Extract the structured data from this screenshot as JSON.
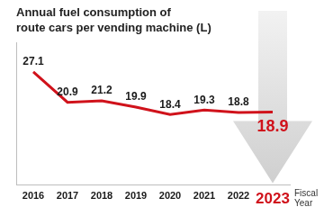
{
  "chart_data": {
    "type": "line",
    "title": "Annual fuel consumption of\nroute cars per vending machine (L)",
    "x_label": "Fiscal Year",
    "categories": [
      "2016",
      "2017",
      "2018",
      "2019",
      "2020",
      "2021",
      "2022",
      "2023"
    ],
    "values": [
      27.1,
      20.9,
      21.2,
      19.9,
      18.4,
      19.3,
      18.8,
      18.9
    ],
    "color": "#d0121b",
    "ylim": [
      4,
      33
    ],
    "grid": false,
    "data_labels": true,
    "tick_labels": "x",
    "marker": "none"
  }
}
